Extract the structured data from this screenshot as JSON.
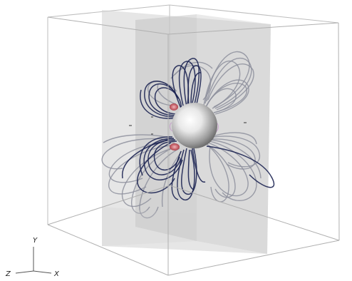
{
  "scene": {
    "background_color": "#ffffff",
    "box_edge_color": "#b4b4b4",
    "slice_plane_color": "#c8c8c8",
    "sphere_color": "#e6e6e6",
    "field_line_dark_color": "#1c2452",
    "field_line_light_color": "#8d8f9c",
    "hotspot_color": "#d8707a"
  },
  "axes_triad": {
    "x_label": "X",
    "y_label": "Y",
    "z_label": "Z",
    "icon": "xyz-axes-triad"
  }
}
